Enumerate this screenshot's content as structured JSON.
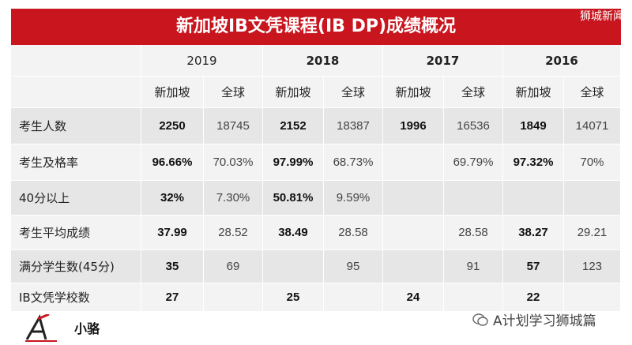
{
  "title": "新加坡IB文凭课程(IB DP)成绩概况",
  "watermark": "狮城新闻",
  "years": [
    "2019",
    "2018",
    "2017",
    "2016"
  ],
  "subheaders": [
    "新加坡",
    "全球"
  ],
  "rows": [
    {
      "label": "考生人数",
      "cells": [
        "2250",
        "18745",
        "2152",
        "18387",
        "1996",
        "16536",
        "1849",
        "14071"
      ]
    },
    {
      "label": "考生及格率",
      "cells": [
        "96.66%",
        "70.03%",
        "97.99%",
        "68.73%",
        "",
        "69.79%",
        "97.32%",
        "70%"
      ]
    },
    {
      "label": "40分以上",
      "cells": [
        "32%",
        "7.30%",
        "50.81%",
        "9.59%",
        "",
        "",
        "",
        ""
      ]
    },
    {
      "label": "考生平均成绩",
      "cells": [
        "37.99",
        "28.52",
        "38.49",
        "28.58",
        "",
        "28.58",
        "38.27",
        "29.21"
      ]
    },
    {
      "label": "满分学生数(45分)",
      "cells": [
        "35",
        "69",
        "",
        "95",
        "",
        "91",
        "57",
        "123"
      ]
    },
    {
      "label": "IB文凭学校数",
      "cells": [
        "27",
        "",
        "25",
        "",
        "24",
        "",
        "22",
        ""
      ]
    }
  ],
  "footer": {
    "author": "小骆",
    "source": "A计划学习狮城篇",
    "logo": "a-letter-logo"
  },
  "colors": {
    "titlebar": "#c8151e",
    "table_bg": "#f3f3f3",
    "shade": "#e6e6e6"
  }
}
